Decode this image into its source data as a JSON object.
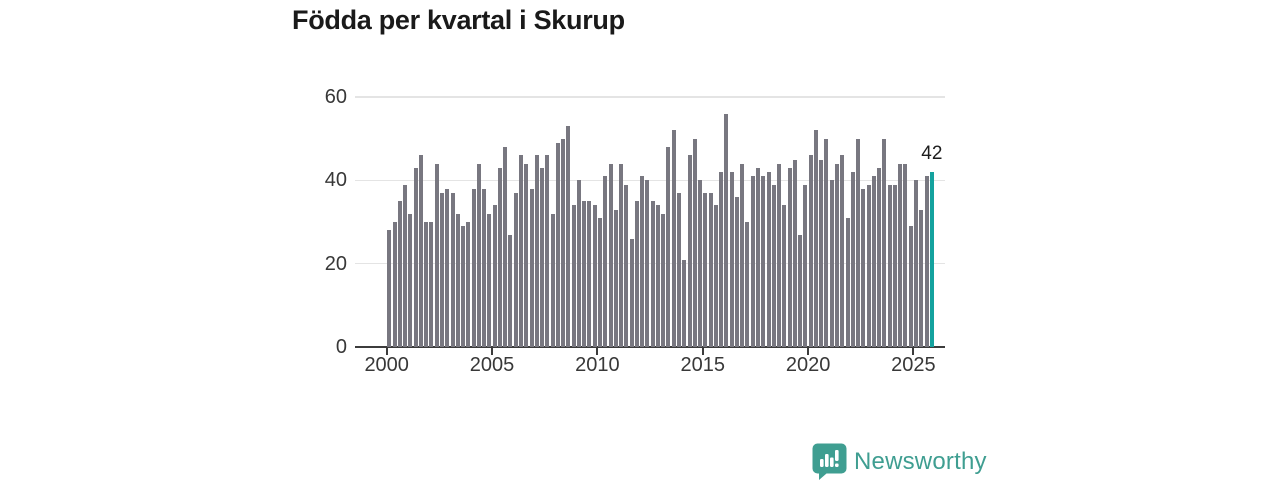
{
  "title": "Födda per kvartal i Skurup",
  "annotation": {
    "last_value_label": "42"
  },
  "branding": {
    "logo_text": "Newsworthy",
    "logo_icon": "speech-bubble-bar-chart"
  },
  "colors": {
    "bar": "#787780",
    "highlight": "#14a29e",
    "grid": "#e4e4e4",
    "axis": "#3c3c3c",
    "title": "#1a1a1a",
    "tick_text": "#383838",
    "logo": "#3f9e91"
  },
  "chart_data": {
    "type": "bar",
    "title": "Födda per kvartal i Skurup",
    "frequency": "quarterly",
    "x_start": "2000-Q1",
    "x_end": "2025-Q4",
    "values": [
      28,
      30,
      35,
      39,
      32,
      43,
      46,
      30,
      30,
      44,
      37,
      38,
      37,
      32,
      29,
      30,
      38,
      44,
      38,
      32,
      34,
      43,
      48,
      27,
      37,
      46,
      44,
      38,
      46,
      43,
      46,
      32,
      49,
      50,
      53,
      34,
      40,
      35,
      35,
      34,
      31,
      41,
      44,
      33,
      44,
      39,
      26,
      35,
      41,
      40,
      35,
      34,
      32,
      48,
      52,
      37,
      21,
      46,
      50,
      40,
      37,
      37,
      34,
      42,
      56,
      42,
      36,
      44,
      30,
      41,
      43,
      41,
      42,
      39,
      44,
      34,
      43,
      45,
      27,
      39,
      46,
      52,
      45,
      50,
      40,
      44,
      46,
      31,
      42,
      50,
      38,
      39,
      41,
      43,
      50,
      39,
      39,
      44,
      44,
      29,
      40,
      33,
      41,
      42
    ],
    "x_tick_labels": [
      "2000",
      "2005",
      "2010",
      "2015",
      "2020",
      "2025"
    ],
    "y_ticks": [
      0,
      20,
      40,
      60
    ],
    "ylim": [
      0,
      60
    ],
    "grid": "horizontal",
    "legend": "none",
    "highlight_index": 103,
    "highlight_value": 42
  }
}
